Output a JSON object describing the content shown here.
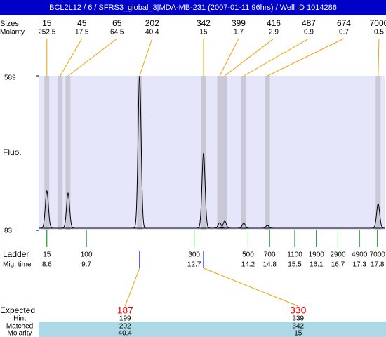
{
  "header": {
    "title": "BCL2L12 / 6 / SFRS3_global_3|MDA-MB-231 (2007-01-11 96hrs) / Well ID 1014286"
  },
  "chart_data": {
    "type": "electropherogram",
    "y_label": "Fluo.",
    "ylim": [
      83,
      589
    ],
    "yticks": [
      83,
      589
    ],
    "xlim": [
      8.37,
      18.0
    ],
    "baseline": 90,
    "peak_row_labels": [
      "Sizes",
      "Molarity"
    ],
    "peaks": {
      "sizes": [
        15,
        45,
        65,
        202,
        342,
        399,
        416,
        487,
        674,
        7000
      ],
      "molarity": [
        252.5,
        17.5,
        64.5,
        40.4,
        15,
        1.7,
        2.9,
        0.9,
        0.7,
        0.5
      ],
      "times": [
        8.6,
        8.97,
        9.19,
        11.18,
        12.96,
        13.41,
        13.55,
        14.08,
        14.74,
        17.82
      ],
      "heights": [
        212,
        90,
        205,
        589,
        336,
        108,
        113,
        106,
        99,
        170
      ]
    },
    "ladder": {
      "label": "Ladder",
      "time_label": "Mig. time",
      "sizes": [
        15,
        100,
        300,
        500,
        700,
        1100,
        1900,
        2900,
        4900,
        7000
      ],
      "times": [
        8.6,
        9.7,
        12.7,
        14.2,
        14.8,
        15.5,
        16.1,
        16.7,
        17.3,
        17.8
      ]
    },
    "expected": {
      "row_labels": [
        "Expected",
        "Hint",
        "Matched",
        "Molarity"
      ],
      "expected": [
        187,
        330
      ],
      "hint": [
        199,
        339
      ],
      "matched": [
        202,
        342
      ],
      "molarity": [
        40.4,
        15
      ]
    }
  }
}
